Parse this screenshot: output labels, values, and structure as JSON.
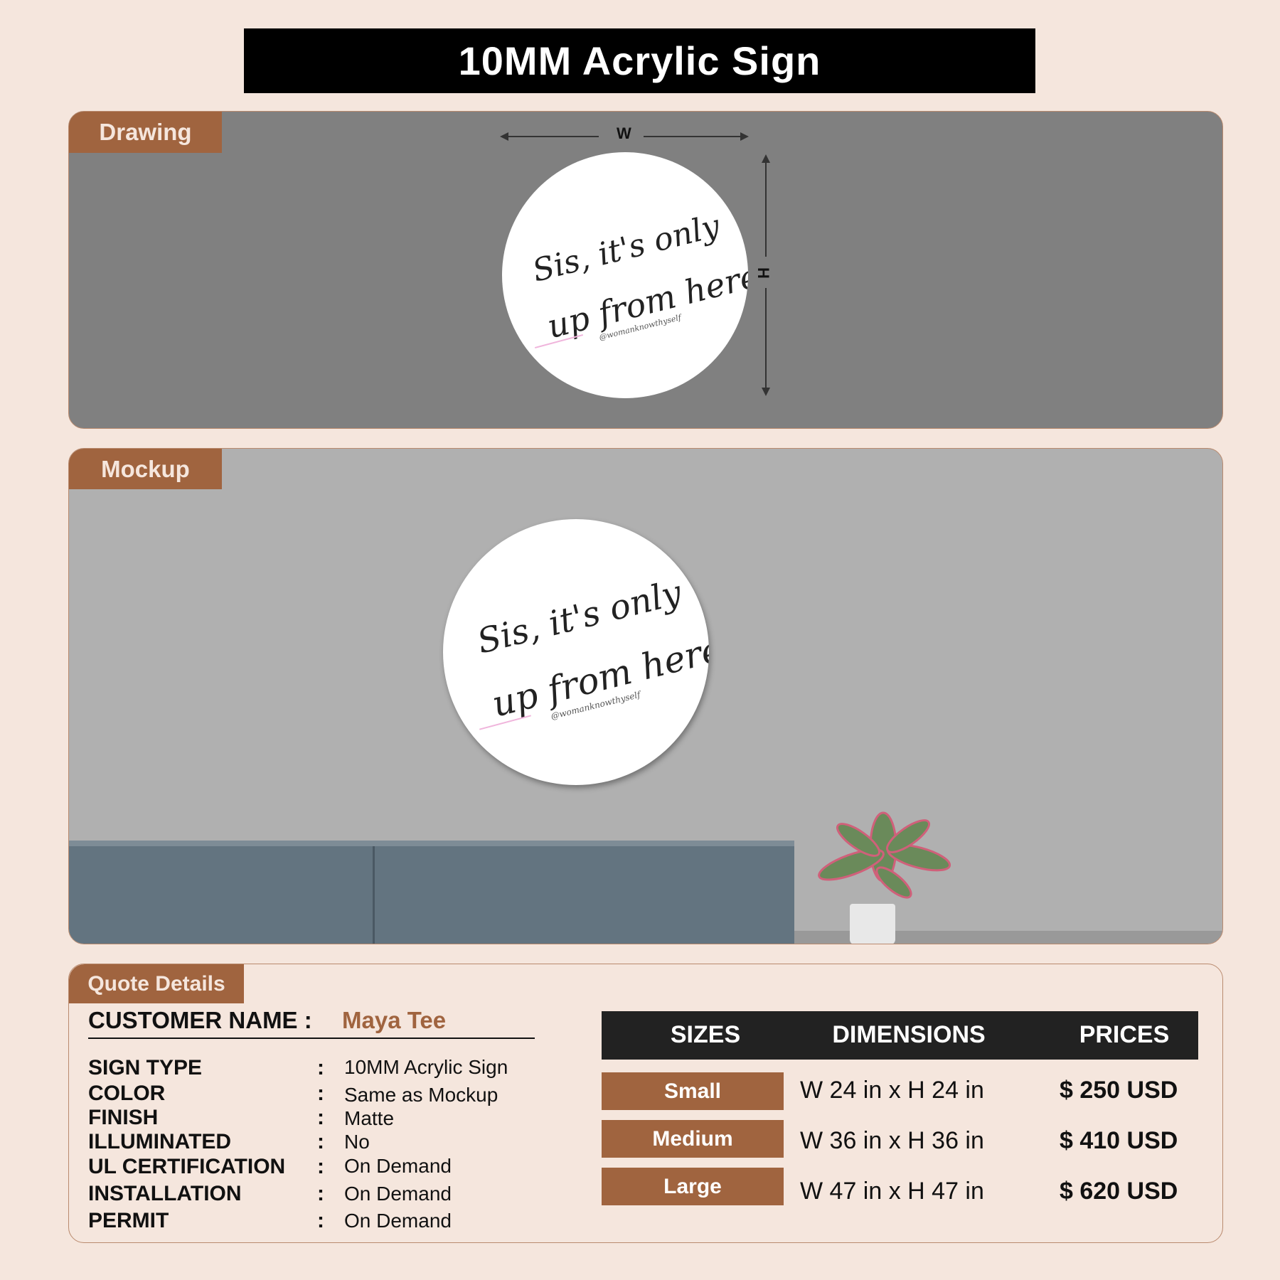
{
  "header": {
    "title": "10MM Acrylic Sign"
  },
  "drawing": {
    "tab_label": "Drawing",
    "width_label": "W",
    "height_label": "H"
  },
  "mockup": {
    "tab_label": "Mockup"
  },
  "sign_artwork": {
    "line1": "Sis, it's only",
    "line2": "up from here!",
    "handle": "@womanknowthyself"
  },
  "quote": {
    "tab_label": "Quote Details",
    "customer_label": "CUSTOMER NAME :",
    "customer_name": "Maya Tee",
    "details": [
      {
        "label": "SIGN TYPE",
        "value": "10MM Acrylic Sign"
      },
      {
        "label": "COLOR",
        "value": "Same as Mockup"
      },
      {
        "label": "FINISH",
        "value": "Matte"
      },
      {
        "label": "ILLUMINATED",
        "value": "No"
      },
      {
        "label": "UL CERTIFICATION",
        "value": "On Demand"
      },
      {
        "label": "INSTALLATION",
        "value": "On Demand"
      },
      {
        "label": "PERMIT",
        "value": "On Demand"
      }
    ],
    "separator": ":"
  },
  "pricing": {
    "headers": [
      "SIZES",
      "DIMENSIONS",
      "PRICES"
    ],
    "rows": [
      {
        "size": "Small",
        "dimensions": "W 24 in x H 24 in",
        "price": "$ 250 USD"
      },
      {
        "size": "Medium",
        "dimensions": "W 36 in x H 36 in",
        "price": "$ 410 USD"
      },
      {
        "size": "Large",
        "dimensions": "W 47 in x H 47 in",
        "price": "$ 620 USD"
      }
    ]
  },
  "colors": {
    "background": "#f5e6dd",
    "accent": "#a0643f",
    "header": "#000000",
    "table_header": "#222222"
  }
}
